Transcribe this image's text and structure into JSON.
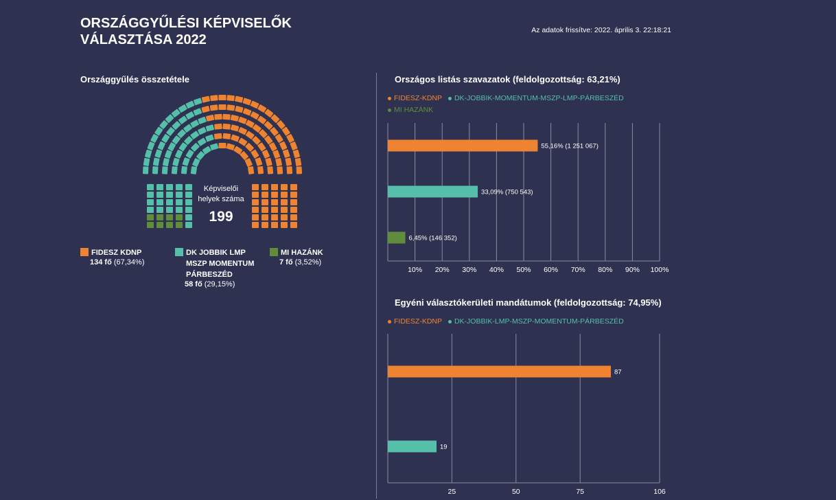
{
  "header": {
    "title_line1": "ORSZÁGGYŰLÉSI KÉPVISELŐK",
    "title_line2": "VÁLASZTÁSA 2022",
    "updated": "Az adatok frissítve: 2022. április 3. 22:18:21"
  },
  "colors": {
    "background": "#2f3150",
    "fidesz": "#ee8431",
    "opposition": "#55bfaa",
    "mi_hazank": "#5f8d3c",
    "grid": "#888ba3"
  },
  "parliament": {
    "title": "Országgyűlés összetétele",
    "seat_label": "Képviselői helyek száma",
    "seat_total": "199",
    "parties": [
      {
        "name": "FIDESZ  KDNP",
        "count_bold": "134 fő",
        "count_rest": " (67,34%)",
        "seats": 134,
        "color": "#ee8431"
      },
      {
        "name": "DK  JOBBIK  LMP\nMSZP  MOMENTUM\nPÁRBESZÉD",
        "count_bold": "58 fő",
        "count_rest": " (29,15%)",
        "seats": 58,
        "color": "#55bfaa"
      },
      {
        "name": "MI HAZÁNK",
        "count_bold": "7 fő",
        "count_rest": " (3,52%)",
        "seats": 7,
        "color": "#5f8d3c"
      }
    ]
  },
  "chart_data": [
    {
      "type": "bar",
      "orientation": "horizontal",
      "title": "Országos listás szavazatok (feldolgozottság: 63,21%)",
      "legend": [
        {
          "label": "FIDESZ-KDNP",
          "color": "#ee8431"
        },
        {
          "label": "DK-JOBBIK-MOMENTUM-MSZP-LMP-PÁRBESZÉD",
          "color": "#55bfaa"
        },
        {
          "label": "MI HAZÁNK",
          "color": "#5f8d3c"
        }
      ],
      "categories": [
        "FIDESZ-KDNP",
        "DK-JOBBIK-MOMENTUM-MSZP-LMP-PÁRBESZÉD",
        "MI HAZÁNK"
      ],
      "values": [
        55.16,
        33.09,
        6.45
      ],
      "data_labels": [
        "55,16% (1 251 067)",
        "33,09% (750 543)",
        "6,45% (146 352)"
      ],
      "colors": [
        "#ee8431",
        "#55bfaa",
        "#5f8d3c"
      ],
      "xlim": [
        0,
        100
      ],
      "xticks": [
        10,
        20,
        30,
        40,
        50,
        60,
        70,
        80,
        90,
        100
      ],
      "xtick_labels": [
        "10%",
        "20%",
        "30%",
        "40%",
        "50%",
        "60%",
        "70%",
        "80%",
        "90%",
        "100%"
      ]
    },
    {
      "type": "bar",
      "orientation": "horizontal",
      "title": "Egyéni választókerületi mandátumok (feldolgozottság: 74,95%)",
      "legend": [
        {
          "label": "FIDESZ-KDNP",
          "color": "#ee8431"
        },
        {
          "label": "DK-JOBBIK-LMP-MSZP-MOMENTUM-PÁRBESZÉD",
          "color": "#55bfaa"
        }
      ],
      "categories": [
        "FIDESZ-KDNP",
        "DK-JOBBIK-LMP-MSZP-MOMENTUM-PÁRBESZÉD"
      ],
      "values": [
        87,
        19
      ],
      "data_labels": [
        "87",
        "19"
      ],
      "colors": [
        "#ee8431",
        "#55bfaa"
      ],
      "xlim": [
        0,
        106
      ],
      "xticks": [
        25,
        50,
        75,
        106
      ],
      "xtick_labels": [
        "25",
        "50",
        "75",
        "106"
      ]
    }
  ]
}
